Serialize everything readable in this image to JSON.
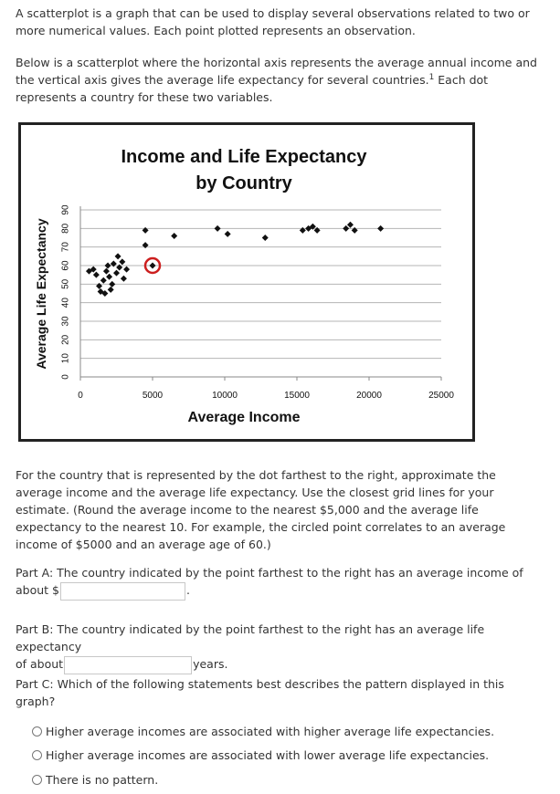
{
  "intro": {
    "p1": "A scatterplot is a graph that can be used to display several observations related to two or more numerical values. Each point plotted represents an observation.",
    "p2_before": "Below is a scatterplot where the horizontal axis represents the average annual income and the vertical axis gives the average life expectancy for several countries.",
    "p2_footnote": "1",
    "p2_after": " Each dot represents a country for these two variables."
  },
  "chart_data": {
    "type": "scatter",
    "title_line1": "Income and Life Expectancy",
    "title_line2": "by Country",
    "xlabel": "Average Income",
    "ylabel": "Average Life Expectancy",
    "xlim": [
      0,
      25000
    ],
    "ylim": [
      0,
      90
    ],
    "xticks": [
      0,
      5000,
      10000,
      15000,
      20000,
      25000
    ],
    "xtick_labels": [
      "0",
      "5000",
      "10000",
      "15000",
      "20000",
      "25000"
    ],
    "yticks": [
      0,
      10,
      20,
      30,
      40,
      50,
      60,
      70,
      80,
      90
    ],
    "ytick_labels": [
      "0",
      "10",
      "20",
      "30",
      "40",
      "50",
      "60",
      "70",
      "80",
      "90"
    ],
    "grid": "horizontal",
    "marker_color": "#111111",
    "highlight_color": "#cc1f1f",
    "points": [
      {
        "x": 600,
        "y": 57
      },
      {
        "x": 900,
        "y": 58
      },
      {
        "x": 1100,
        "y": 55
      },
      {
        "x": 1300,
        "y": 49
      },
      {
        "x": 1400,
        "y": 46
      },
      {
        "x": 1600,
        "y": 52
      },
      {
        "x": 1700,
        "y": 45
      },
      {
        "x": 1800,
        "y": 57
      },
      {
        "x": 1900,
        "y": 60
      },
      {
        "x": 2000,
        "y": 54
      },
      {
        "x": 2100,
        "y": 47
      },
      {
        "x": 2200,
        "y": 50
      },
      {
        "x": 2300,
        "y": 61
      },
      {
        "x": 2500,
        "y": 56
      },
      {
        "x": 2600,
        "y": 65
      },
      {
        "x": 2700,
        "y": 59
      },
      {
        "x": 2900,
        "y": 62
      },
      {
        "x": 3000,
        "y": 53
      },
      {
        "x": 3200,
        "y": 58
      },
      {
        "x": 4500,
        "y": 79
      },
      {
        "x": 4500,
        "y": 71
      },
      {
        "x": 5000,
        "y": 60,
        "circled": true
      },
      {
        "x": 6500,
        "y": 76
      },
      {
        "x": 9500,
        "y": 80
      },
      {
        "x": 10200,
        "y": 77
      },
      {
        "x": 12800,
        "y": 75
      },
      {
        "x": 15400,
        "y": 79
      },
      {
        "x": 15800,
        "y": 80
      },
      {
        "x": 16100,
        "y": 81
      },
      {
        "x": 16400,
        "y": 79
      },
      {
        "x": 18400,
        "y": 80
      },
      {
        "x": 18700,
        "y": 82
      },
      {
        "x": 19000,
        "y": 79
      },
      {
        "x": 20800,
        "y": 80
      }
    ]
  },
  "question": {
    "text": "For the country that is represented by the dot farthest to the right, approximate the average income and the average life expectancy. Use the closest grid lines for your estimate. (Round the average income to the nearest $5,000 and the average life expectancy to the nearest 10. For example, the circled point correlates to an average income of $5000 and an average age of 60.)"
  },
  "part_a": {
    "line1": "Part A: The country indicated by the point farthest to the right has an average income of",
    "prefix": "about $",
    "value": "",
    "suffix": "."
  },
  "part_b": {
    "line1": "Part B: The country indicated by the point farthest to the right has an average life expectancy",
    "prefix": "of about",
    "value": "",
    "suffix": "years."
  },
  "part_c": {
    "text": "Part C: Which of the following statements best describes the pattern displayed in this graph?",
    "options": [
      "Higher average incomes are associated with higher average life expectancies.",
      "Higher average incomes are associated with lower average life expectancies.",
      "There is no pattern."
    ]
  }
}
